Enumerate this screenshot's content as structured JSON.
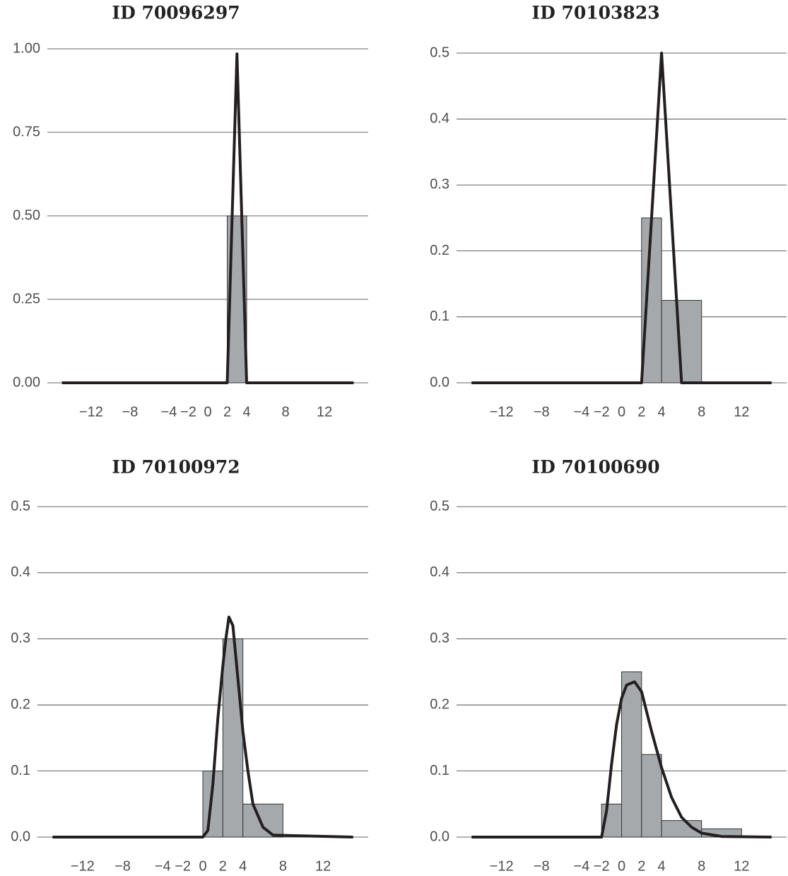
{
  "chart_data": [
    {
      "type": "histogram",
      "title": "ID 70096297",
      "bins": [
        2,
        4
      ],
      "values": [
        0.5
      ],
      "color": "#a6a9ac",
      "line": {
        "x": [
          -15,
          2,
          3,
          4,
          15
        ],
        "y": [
          0,
          0,
          0.985,
          0,
          0
        ],
        "color": "#231f20"
      },
      "xlim": [
        -16.5,
        16.5
      ],
      "xticks": [
        {
          "value": -12,
          "label": "−12"
        },
        {
          "value": -8,
          "label": "−8"
        },
        {
          "value": -4,
          "label": "−4"
        },
        {
          "value": -2,
          "label": "−2"
        },
        0,
        2,
        4,
        8,
        12
      ],
      "ylim": [
        0,
        1
      ],
      "yticks": [
        {
          "value": 0,
          "label": "0.00"
        },
        {
          "value": 0.25,
          "label": "0.25"
        },
        {
          "value": 0.5,
          "label": "0.50"
        },
        {
          "value": 0.75,
          "label": "0.75"
        },
        {
          "value": 1,
          "label": "1.00"
        }
      ],
      "grid": true
    },
    {
      "type": "histogram",
      "title": "ID 70103823",
      "bins": [
        2,
        4,
        8
      ],
      "values": [
        0.25,
        0.125
      ],
      "color": "#a6a9ac",
      "line": {
        "x": [
          -15,
          2,
          4,
          6,
          15
        ],
        "y": [
          0,
          0,
          0.5,
          0,
          0
        ],
        "color": "#231f20"
      },
      "xlim": [
        -16.5,
        16.5
      ],
      "xticks": [
        {
          "value": -12,
          "label": "−12"
        },
        {
          "value": -8,
          "label": "−8"
        },
        {
          "value": -4,
          "label": "−4"
        },
        {
          "value": -2,
          "label": "−2"
        },
        0,
        2,
        4,
        8,
        12
      ],
      "ylim": [
        0,
        0.5
      ],
      "yticks": [
        {
          "value": 0,
          "label": "0.0"
        },
        0.1,
        0.2,
        0.3,
        0.4,
        0.5
      ],
      "grid": true
    },
    {
      "type": "histogram",
      "title": "ID 70100972",
      "bins": [
        0,
        2,
        4,
        8
      ],
      "values": [
        0.1,
        0.3,
        0.05
      ],
      "color": "#a6a9ac",
      "line": {
        "x": [
          -15,
          0,
          0.5,
          1,
          1.5,
          2,
          2.3,
          2.6,
          3,
          3.5,
          4,
          4.5,
          5,
          6,
          7,
          15
        ],
        "y": [
          0,
          0,
          0.01,
          0.08,
          0.18,
          0.26,
          0.3,
          0.333,
          0.32,
          0.24,
          0.16,
          0.1,
          0.05,
          0.015,
          0.003,
          0
        ],
        "color": "#231f20"
      },
      "xlim": [
        -16.5,
        16.5
      ],
      "xticks": [
        {
          "value": -12,
          "label": "−12"
        },
        {
          "value": -8,
          "label": "−8"
        },
        {
          "value": -4,
          "label": "−4"
        },
        {
          "value": -2,
          "label": "−2"
        },
        0,
        2,
        4,
        8,
        12
      ],
      "ylim": [
        0,
        0.5
      ],
      "yticks": [
        {
          "value": 0,
          "label": "0.0"
        },
        0.1,
        0.2,
        0.3,
        0.4,
        0.5
      ],
      "grid": true
    },
    {
      "type": "histogram",
      "title": "ID 70100690",
      "bins": [
        -2,
        0,
        2,
        4,
        8,
        12
      ],
      "values": [
        0.05,
        0.25,
        0.125,
        0.025,
        0.0125
      ],
      "color": "#a6a9ac",
      "line": {
        "x": [
          -15,
          -2,
          -1.5,
          -1,
          -0.5,
          0,
          0.5,
          1.3,
          2,
          3,
          4,
          5,
          6,
          7,
          8,
          10,
          15
        ],
        "y": [
          0,
          0,
          0.04,
          0.11,
          0.17,
          0.21,
          0.23,
          0.235,
          0.22,
          0.16,
          0.105,
          0.06,
          0.03,
          0.015,
          0.006,
          0.001,
          0
        ],
        "color": "#231f20"
      },
      "xlim": [
        -16.5,
        16.5
      ],
      "xticks": [
        {
          "value": -12,
          "label": "−12"
        },
        {
          "value": -8,
          "label": "−8"
        },
        {
          "value": -4,
          "label": "−4"
        },
        {
          "value": -2,
          "label": "−2"
        },
        0,
        2,
        4,
        8,
        12
      ],
      "ylim": [
        0,
        0.5
      ],
      "yticks": [
        {
          "value": 0,
          "label": "0.0"
        },
        0.1,
        0.2,
        0.3,
        0.4,
        0.5
      ],
      "grid": true
    }
  ]
}
